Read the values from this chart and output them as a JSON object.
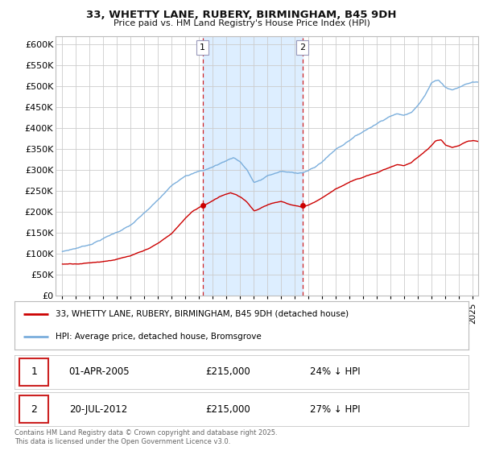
{
  "title": "33, WHETTY LANE, RUBERY, BIRMINGHAM, B45 9DH",
  "subtitle": "Price paid vs. HM Land Registry's House Price Index (HPI)",
  "ylim": [
    0,
    620000
  ],
  "yticks": [
    0,
    50000,
    100000,
    150000,
    200000,
    250000,
    300000,
    350000,
    400000,
    450000,
    500000,
    550000,
    600000
  ],
  "xlim_start": 1994.5,
  "xlim_end": 2025.4,
  "legend_line1": "33, WHETTY LANE, RUBERY, BIRMINGHAM, B45 9DH (detached house)",
  "legend_line2": "HPI: Average price, detached house, Bromsgrove",
  "hpi_color": "#7aaedc",
  "price_color": "#cc0000",
  "vline_color": "#cc0000",
  "span_color": "#ddeeff",
  "annotation1_label": "1",
  "annotation1_date": "01-APR-2005",
  "annotation1_price": "£215,000",
  "annotation1_pct": "24% ↓ HPI",
  "annotation2_label": "2",
  "annotation2_date": "20-JUL-2012",
  "annotation2_price": "£215,000",
  "annotation2_pct": "27% ↓ HPI",
  "footer": "Contains HM Land Registry data © Crown copyright and database right 2025.\nThis data is licensed under the Open Government Licence v3.0.",
  "vline1_x": 2005.25,
  "vline2_x": 2012.55,
  "marker1_x": 2005.25,
  "marker1_y": 215000,
  "marker2_x": 2012.55,
  "marker2_y": 215000,
  "background_color": "#ffffff",
  "grid_color": "#cccccc"
}
